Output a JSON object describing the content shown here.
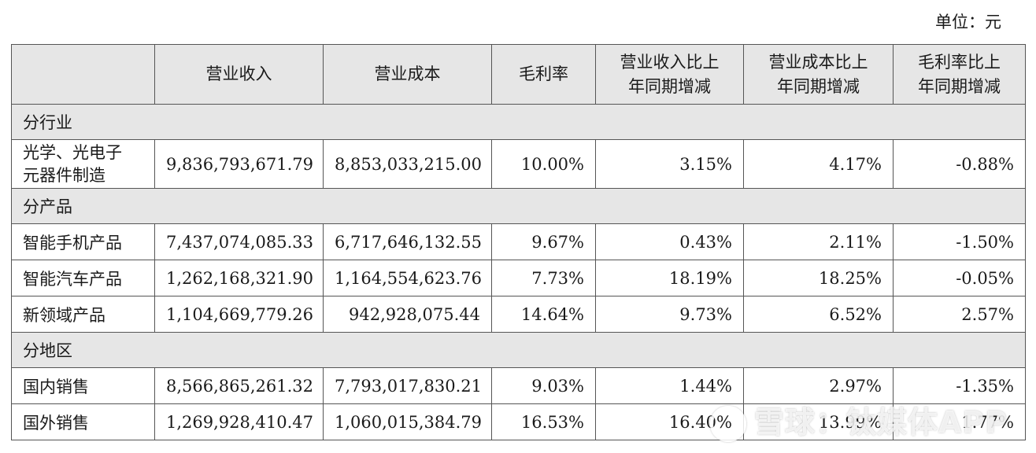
{
  "unit_label": "单位：元",
  "header": {
    "blank": "",
    "revenue": "营业收入",
    "cost": "营业成本",
    "margin": "毛利率",
    "revenue_yoy": [
      "营业收入比上",
      "年同期增减"
    ],
    "cost_yoy": [
      "营业成本比上",
      "年同期增减"
    ],
    "margin_yoy": [
      "毛利率比上",
      "年同期增减"
    ]
  },
  "sections": [
    {
      "title": "分行业",
      "rows": [
        {
          "label": [
            "光学、光电子",
            "元器件制造"
          ],
          "revenue": "9,836,793,671.79",
          "cost": "8,853,033,215.00",
          "margin": "10.00%",
          "revenue_yoy": "3.15%",
          "cost_yoy": "4.17%",
          "margin_yoy": "-0.88%"
        }
      ]
    },
    {
      "title": "分产品",
      "rows": [
        {
          "label": [
            "智能手机产品"
          ],
          "revenue": "7,437,074,085.33",
          "cost": "6,717,646,132.55",
          "margin": "9.67%",
          "revenue_yoy": "0.43%",
          "cost_yoy": "2.11%",
          "margin_yoy": "-1.50%"
        },
        {
          "label": [
            "智能汽车产品"
          ],
          "revenue": "1,262,168,321.90",
          "cost": "1,164,554,623.76",
          "margin": "7.73%",
          "revenue_yoy": "18.19%",
          "cost_yoy": "18.25%",
          "margin_yoy": "-0.05%"
        },
        {
          "label": [
            "新领域产品"
          ],
          "revenue": "1,104,669,779.26",
          "cost": "942,928,075.44",
          "margin": "14.64%",
          "revenue_yoy": "9.73%",
          "cost_yoy": "6.52%",
          "margin_yoy": "2.57%"
        }
      ]
    },
    {
      "title": "分地区",
      "rows": [
        {
          "label": [
            "国内销售"
          ],
          "revenue": "8,566,865,261.32",
          "cost": "7,793,017,830.21",
          "margin": "9.03%",
          "revenue_yoy": "1.44%",
          "cost_yoy": "2.97%",
          "margin_yoy": "-1.35%"
        },
        {
          "label": [
            "国外销售"
          ],
          "revenue": "1,269,928,410.47",
          "cost": "1,060,015,384.79",
          "margin": "16.53%",
          "revenue_yoy": "16.40%",
          "cost_yoy": "13.99%",
          "margin_yoy": "1.77%"
        }
      ]
    }
  ],
  "watermark": "雪球：钛媒体APP"
}
